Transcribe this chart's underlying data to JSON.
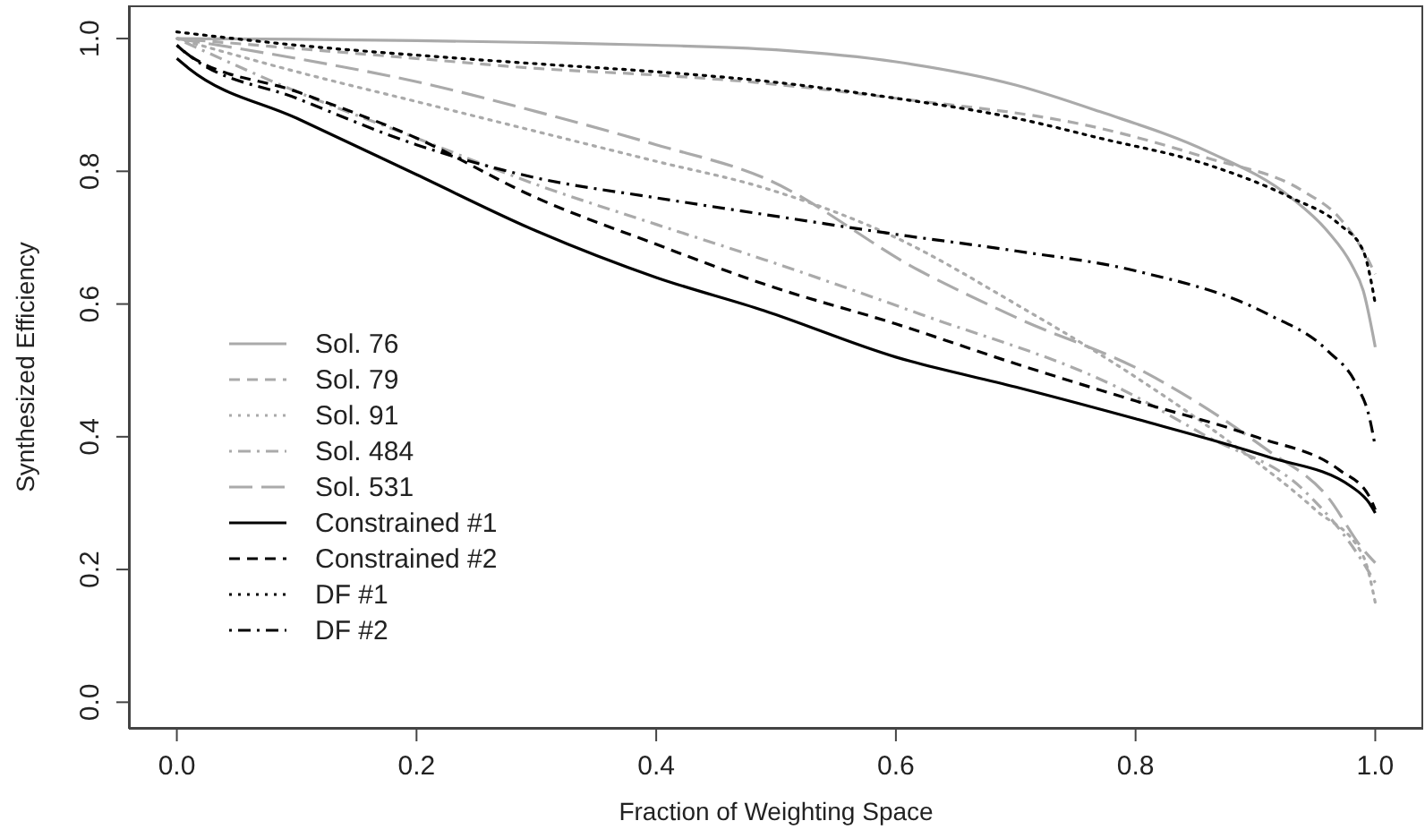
{
  "chart_data": {
    "type": "line",
    "xlabel": "Fraction of Weighting Space",
    "ylabel": "Synthesized Efficiency",
    "xlim": [
      -0.04,
      1.04
    ],
    "ylim": [
      -0.04,
      1.05
    ],
    "xticks": [
      {
        "value": 0,
        "label": "0.0"
      },
      0.2,
      0.4,
      0.6,
      0.8,
      {
        "value": 1,
        "label": "1.0"
      }
    ],
    "yticks": [
      {
        "value": 0,
        "label": "0.0"
      },
      0.2,
      0.4,
      0.6,
      0.8,
      {
        "value": 1,
        "label": "1.0"
      }
    ],
    "grid": false,
    "legend": "bottom left",
    "marker": "none",
    "series": [
      {
        "name": "Sol. 76",
        "color": "#aaaaaa",
        "line_style": "solid",
        "x": [
          0,
          0.1,
          0.2,
          0.3,
          0.4,
          0.5,
          0.6,
          0.7,
          0.77,
          0.86,
          0.93,
          0.96,
          0.98,
          0.99,
          1
        ],
        "values": [
          1.0,
          0.999,
          0.997,
          0.994,
          0.99,
          0.983,
          0.965,
          0.93,
          0.89,
          0.83,
          0.76,
          0.71,
          0.66,
          0.62,
          0.535
        ]
      },
      {
        "name": "Sol. 79",
        "color": "#aaaaaa",
        "line_style": "dashed",
        "x": [
          0,
          0.1,
          0.2,
          0.3,
          0.4,
          0.47,
          0.6,
          0.77,
          0.86,
          0.94,
          0.97,
          0.99,
          1
        ],
        "values": [
          1.0,
          0.985,
          0.97,
          0.955,
          0.945,
          0.936,
          0.91,
          0.865,
          0.82,
          0.77,
          0.73,
          0.68,
          0.645
        ]
      },
      {
        "name": "Sol. 91",
        "color": "#aaaaaa",
        "line_style": "dotted",
        "x": [
          0,
          0.1,
          0.2,
          0.3,
          0.4,
          0.49,
          0.6,
          0.7,
          0.8,
          0.88,
          0.95,
          0.99,
          1
        ],
        "values": [
          1.0,
          0.95,
          0.905,
          0.86,
          0.815,
          0.775,
          0.7,
          0.6,
          0.49,
          0.39,
          0.29,
          0.22,
          0.15
        ]
      },
      {
        "name": "Sol. 484",
        "color": "#aaaaaa",
        "line_style": "dashdot",
        "x": [
          0,
          0.1,
          0.2,
          0.3,
          0.4,
          0.49,
          0.62,
          0.79,
          0.86,
          0.94,
          0.99,
          1
        ],
        "values": [
          1.0,
          0.92,
          0.85,
          0.78,
          0.72,
          0.667,
          0.585,
          0.47,
          0.4,
          0.32,
          0.21,
          0.18
        ]
      },
      {
        "name": "Sol. 531",
        "color": "#aaaaaa",
        "line_style": "longdash",
        "x": [
          0,
          0.1,
          0.2,
          0.3,
          0.4,
          0.49,
          0.62,
          0.7,
          0.81,
          0.91,
          0.96,
          0.99,
          1
        ],
        "values": [
          1.0,
          0.97,
          0.935,
          0.89,
          0.84,
          0.79,
          0.65,
          0.58,
          0.495,
          0.38,
          0.31,
          0.23,
          0.21
        ]
      },
      {
        "name": "Constrained #1",
        "color": "#000000",
        "line_style": "solid",
        "x": [
          0,
          0.01,
          0.1,
          0.2,
          0.3,
          0.4,
          0.49,
          0.6,
          0.7,
          0.8,
          0.91,
          0.98,
          0.995,
          1
        ],
        "values": [
          0.97,
          0.955,
          0.88,
          0.795,
          0.71,
          0.64,
          0.59,
          0.52,
          0.475,
          0.427,
          0.37,
          0.325,
          0.3,
          0.285
        ]
      },
      {
        "name": "Constrained #2",
        "color": "#000000",
        "line_style": "dashed",
        "x": [
          0,
          0.01,
          0.1,
          0.2,
          0.3,
          0.4,
          0.49,
          0.6,
          0.7,
          0.8,
          0.9,
          0.97,
          0.995,
          1
        ],
        "values": [
          0.99,
          0.975,
          0.92,
          0.85,
          0.76,
          0.69,
          0.63,
          0.57,
          0.51,
          0.454,
          0.4,
          0.35,
          0.31,
          0.29
        ]
      },
      {
        "name": "DF #1",
        "color": "#000000",
        "line_style": "dotted",
        "x": [
          0,
          0.1,
          0.2,
          0.3,
          0.4,
          0.49,
          0.6,
          0.7,
          0.77,
          0.86,
          0.93,
          0.97,
          0.99,
          0.997,
          1
        ],
        "values": [
          1.01,
          0.99,
          0.975,
          0.962,
          0.95,
          0.936,
          0.91,
          0.88,
          0.85,
          0.81,
          0.76,
          0.72,
          0.68,
          0.63,
          0.6
        ]
      },
      {
        "name": "DF #2",
        "color": "#000000",
        "line_style": "dashdot",
        "x": [
          0,
          0.01,
          0.1,
          0.2,
          0.3,
          0.4,
          0.49,
          0.6,
          0.7,
          0.8,
          0.91,
          0.96,
          0.985,
          0.995,
          1
        ],
        "values": [
          0.99,
          0.975,
          0.91,
          0.84,
          0.79,
          0.76,
          0.735,
          0.705,
          0.68,
          0.65,
          0.585,
          0.53,
          0.476,
          0.43,
          0.385
        ]
      }
    ]
  }
}
